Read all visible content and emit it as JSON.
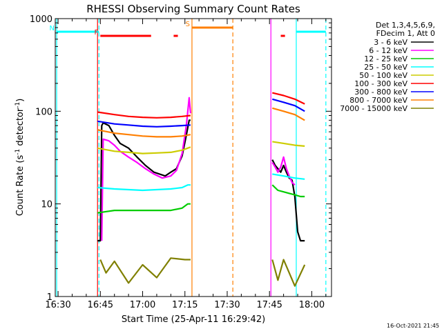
{
  "chart_data": {
    "type": "line",
    "title": "RHESSI Observing Summary Count Rates",
    "xlabel": "Start Time (25-Apr-11 16:29:42)",
    "ylabel_main": "Count Rate (s",
    "ylabel_sup1": "-1",
    "ylabel_mid": " detector",
    "ylabel_sup2": "-1",
    "ylabel_end": ")",
    "timestamp": "16-Oct-2021 21:45",
    "x_domain_minutes": [
      -1,
      97
    ],
    "y_log": true,
    "ylim": [
      1,
      1000
    ],
    "x_ticks": [
      {
        "m": 0,
        "label": "16:30"
      },
      {
        "m": 15,
        "label": "16:45"
      },
      {
        "m": 30,
        "label": "17:00"
      },
      {
        "m": 45,
        "label": "17:15"
      },
      {
        "m": 60,
        "label": "17:30"
      },
      {
        "m": 75,
        "label": "17:45"
      },
      {
        "m": 90,
        "label": "18:00"
      }
    ],
    "y_ticks": [
      {
        "v": 1,
        "label": "1"
      },
      {
        "v": 10,
        "label": "10"
      },
      {
        "v": 100,
        "label": "100"
      },
      {
        "v": 1000,
        "label": "1000"
      }
    ],
    "legend_header": [
      "Det 1,3,4,5,6,9,",
      "FDecim 1, Att 0"
    ],
    "series": [
      {
        "name": "3 - 6 keV",
        "color": "#000000",
        "segs": [
          [
            [
              14,
              4
            ],
            [
              15,
              4
            ],
            [
              15.5,
              70
            ],
            [
              16,
              75
            ],
            [
              18,
              70
            ],
            [
              20,
              55
            ],
            [
              22,
              45
            ],
            [
              25,
              40
            ],
            [
              28,
              32
            ],
            [
              31,
              26
            ],
            [
              34,
              22
            ],
            [
              36,
              21
            ],
            [
              38,
              20
            ],
            [
              40,
              22
            ],
            [
              42,
              24
            ],
            [
              44,
              33
            ],
            [
              45.5,
              55
            ],
            [
              46.5,
              80
            ],
            [
              47,
              80
            ]
          ],
          [
            [
              76,
              30
            ],
            [
              77,
              26
            ],
            [
              78,
              24
            ],
            [
              79,
              22
            ],
            [
              80,
              26
            ],
            [
              81,
              22
            ],
            [
              82,
              19
            ],
            [
              83,
              18
            ],
            [
              84,
              12
            ],
            [
              85,
              5
            ],
            [
              86,
              4
            ],
            [
              87,
              4
            ],
            [
              87.5,
              4
            ]
          ]
        ]
      },
      {
        "name": "6 - 12 keV",
        "color": "#ff00ff",
        "segs": [
          [
            [
              15.5,
              4
            ],
            [
              16,
              50
            ],
            [
              18,
              48
            ],
            [
              20,
              43
            ],
            [
              22,
              37
            ],
            [
              25,
              32
            ],
            [
              28,
              28
            ],
            [
              31,
              24
            ],
            [
              34,
              21
            ],
            [
              37,
              19
            ],
            [
              40,
              20
            ],
            [
              42,
              23
            ],
            [
              44,
              35
            ],
            [
              45.5,
              70
            ],
            [
              46.5,
              140
            ],
            [
              47,
              95
            ]
          ],
          [
            [
              76,
              28
            ],
            [
              77,
              25
            ],
            [
              78,
              22
            ],
            [
              79,
              25
            ],
            [
              80,
              32
            ],
            [
              81,
              24
            ],
            [
              82,
              20
            ],
            [
              83,
              17
            ],
            [
              84,
              16
            ]
          ]
        ]
      },
      {
        "name": "12 - 25 keV",
        "color": "#00cc00",
        "segs": [
          [
            [
              14,
              8
            ],
            [
              20,
              8.5
            ],
            [
              30,
              8.5
            ],
            [
              40,
              8.5
            ],
            [
              44,
              9
            ],
            [
              46,
              10
            ],
            [
              47,
              10
            ]
          ],
          [
            [
              76,
              16
            ],
            [
              78,
              14
            ],
            [
              80,
              13.5
            ],
            [
              82,
              13
            ],
            [
              84,
              12.5
            ],
            [
              86,
              12
            ],
            [
              87.5,
              12
            ]
          ]
        ]
      },
      {
        "name": "25 - 50 keV",
        "color": "#00ffff",
        "segs": [
          [
            [
              14,
              15
            ],
            [
              20,
              14.5
            ],
            [
              30,
              14
            ],
            [
              40,
              14.5
            ],
            [
              44,
              15
            ],
            [
              46,
              16
            ],
            [
              47,
              16
            ]
          ],
          [
            [
              76,
              21
            ],
            [
              80,
              20
            ],
            [
              84,
              19
            ],
            [
              87.5,
              18.5
            ]
          ]
        ]
      },
      {
        "name": "50 - 100 keV",
        "color": "#cccc00",
        "segs": [
          [
            [
              14,
              40
            ],
            [
              20,
              37
            ],
            [
              25,
              36
            ],
            [
              30,
              35
            ],
            [
              35,
              35.5
            ],
            [
              40,
              36
            ],
            [
              44,
              38
            ],
            [
              47,
              41
            ]
          ],
          [
            [
              76,
              47
            ],
            [
              80,
              45
            ],
            [
              84,
              43
            ],
            [
              87.5,
              42
            ]
          ]
        ]
      },
      {
        "name": "100 - 300 keV",
        "color": "#ff0000",
        "segs": [
          [
            [
              14,
              98
            ],
            [
              20,
              92
            ],
            [
              25,
              88
            ],
            [
              30,
              86
            ],
            [
              35,
              85
            ],
            [
              40,
              86
            ],
            [
              44,
              88
            ],
            [
              47,
              90
            ]
          ],
          [
            [
              76,
              158
            ],
            [
              80,
              148
            ],
            [
              84,
              135
            ],
            [
              87.5,
              120
            ]
          ]
        ]
      },
      {
        "name": "300 - 800 keV",
        "color": "#0000ff",
        "segs": [
          [
            [
              14,
              78
            ],
            [
              20,
              73
            ],
            [
              25,
              71
            ],
            [
              30,
              69
            ],
            [
              35,
              68
            ],
            [
              40,
              69
            ],
            [
              44,
              70
            ],
            [
              47,
              71
            ]
          ],
          [
            [
              76,
              135
            ],
            [
              80,
              125
            ],
            [
              84,
              115
            ],
            [
              87.5,
              100
            ]
          ]
        ]
      },
      {
        "name": "800 - 7000 keV",
        "color": "#ff7f00",
        "segs": [
          [
            [
              14,
              63
            ],
            [
              20,
              58
            ],
            [
              25,
              56
            ],
            [
              30,
              54
            ],
            [
              35,
              53
            ],
            [
              40,
              53
            ],
            [
              44,
              54
            ],
            [
              47,
              56
            ]
          ],
          [
            [
              76,
              108
            ],
            [
              80,
              100
            ],
            [
              84,
              92
            ],
            [
              87.5,
              80
            ]
          ]
        ]
      },
      {
        "name": "7000 - 15000 keV",
        "color": "#808000",
        "segs": [
          [
            [
              15,
              2.5
            ],
            [
              17,
              1.8
            ],
            [
              20,
              2.4
            ],
            [
              25,
              1.4
            ],
            [
              30,
              2.2
            ],
            [
              35,
              1.6
            ],
            [
              40,
              2.6
            ],
            [
              45,
              2.5
            ],
            [
              47,
              2.5
            ]
          ],
          [
            [
              76,
              2.5
            ],
            [
              78,
              1.5
            ],
            [
              80,
              2.5
            ],
            [
              84,
              1.3
            ],
            [
              87.5,
              2.2
            ]
          ]
        ]
      }
    ],
    "flag_bars": [
      {
        "label": "N",
        "color": "#00ffff",
        "y": 1.0,
        "ranges": [
          [
            -0.5,
            14.5
          ],
          [
            84.5,
            95
          ]
        ]
      },
      {
        "label": "F",
        "color": "#ff0000",
        "y": 2.0,
        "ranges": [
          [
            15,
            33
          ],
          [
            41,
            42.5
          ],
          [
            79,
            80.5
          ]
        ]
      },
      {
        "label": "S",
        "color": "#ff7f00",
        "y": 0.0,
        "ranges": [
          [
            47.5,
            62
          ]
        ]
      }
    ],
    "vertical_lines": [
      {
        "m": -0.5,
        "color": "#00ffff",
        "dash": false
      },
      {
        "m": 14.5,
        "color": "#00ffff",
        "dash": true
      },
      {
        "m": 84.5,
        "color": "#00ffff",
        "dash": false
      },
      {
        "m": 95,
        "color": "#00ffff",
        "dash": true
      },
      {
        "m": 47.5,
        "color": "#ff7f00",
        "dash": false
      },
      {
        "m": 62,
        "color": "#ff7f00",
        "dash": true
      },
      {
        "m": 14,
        "color": "#ff0000",
        "dash": false
      },
      {
        "m": 75.5,
        "color": "#ff00ff",
        "dash": false
      }
    ]
  }
}
